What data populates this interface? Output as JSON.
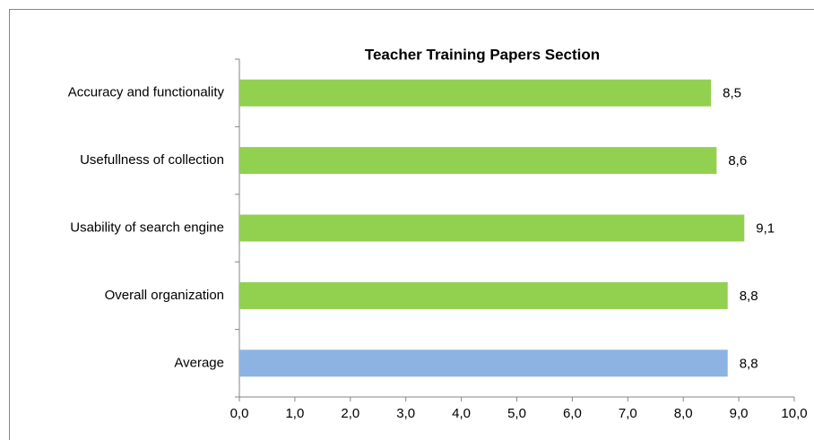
{
  "chart_data": {
    "type": "hbar",
    "title": "Teacher Training  Papers Section",
    "categories": [
      "Accuracy and functionality",
      "Usefullness of collection",
      "Usability of search engine",
      "Overall organization",
      "Average"
    ],
    "values": [
      8.5,
      8.6,
      9.1,
      8.8,
      8.8
    ],
    "value_labels": [
      "8,5",
      "8,6",
      "9,1",
      "8,8",
      "8,8"
    ],
    "colors": [
      "#92d050",
      "#92d050",
      "#92d050",
      "#92d050",
      "#8db3e2"
    ],
    "xlim": [
      0,
      10
    ],
    "xticks": [
      {
        "value": 0,
        "label": "0,0"
      },
      {
        "value": 1,
        "label": "1,0"
      },
      {
        "value": 2,
        "label": "2,0"
      },
      {
        "value": 3,
        "label": "3,0"
      },
      {
        "value": 4,
        "label": "4,0"
      },
      {
        "value": 5,
        "label": "5,0"
      },
      {
        "value": 6,
        "label": "6,0"
      },
      {
        "value": 7,
        "label": "7,0"
      },
      {
        "value": 8,
        "label": "8,0"
      },
      {
        "value": 9,
        "label": "9,0"
      },
      {
        "value": 10,
        "label": "10,0"
      }
    ],
    "grid": false
  }
}
